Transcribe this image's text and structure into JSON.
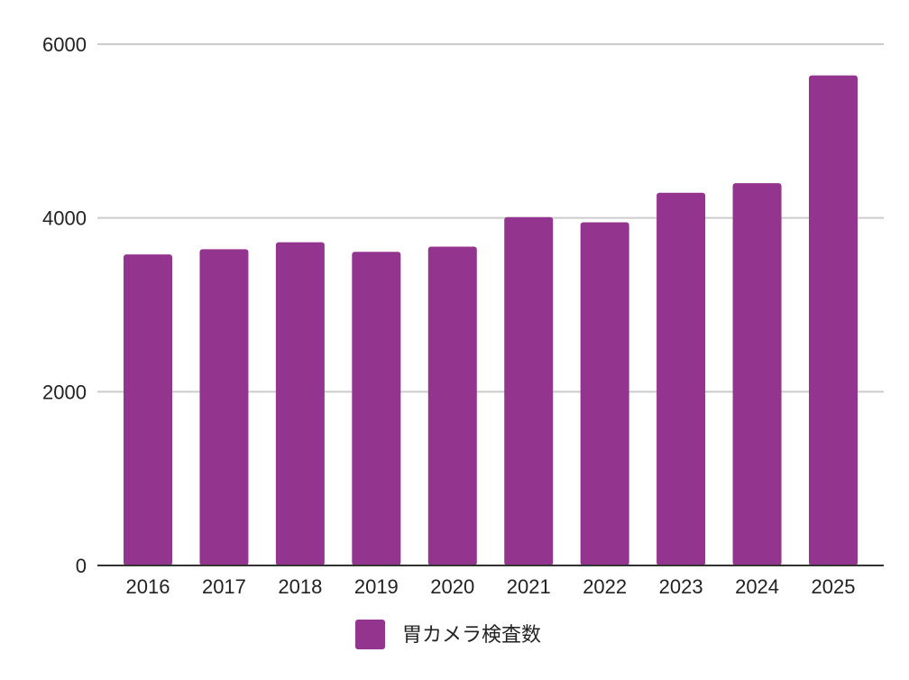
{
  "chart_data": {
    "type": "bar",
    "categories": [
      "2016",
      "2017",
      "2018",
      "2019",
      "2020",
      "2021",
      "2022",
      "2023",
      "2024",
      "2025"
    ],
    "series": [
      {
        "name": "胃カメラ検査数",
        "color": "#93358e",
        "values": [
          3580,
          3640,
          3720,
          3610,
          3670,
          4010,
          3950,
          4290,
          4400,
          5640
        ]
      }
    ],
    "yticks": [
      0,
      2000,
      4000,
      6000
    ],
    "ylim": [
      0,
      6000
    ],
    "grid": true,
    "legend_position": "bottom"
  }
}
